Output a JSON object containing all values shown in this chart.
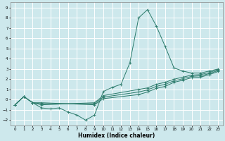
{
  "xlabel": "Humidex (Indice chaleur)",
  "xlim": [
    -0.5,
    23.5
  ],
  "ylim": [
    -2.5,
    9.5
  ],
  "xticks": [
    0,
    1,
    2,
    3,
    4,
    5,
    6,
    7,
    8,
    9,
    10,
    11,
    12,
    13,
    14,
    15,
    16,
    17,
    18,
    19,
    20,
    21,
    22,
    23
  ],
  "yticks": [
    -2,
    -1,
    0,
    1,
    2,
    3,
    4,
    5,
    6,
    7,
    8,
    9
  ],
  "background_color": "#cde8ec",
  "grid_color": "#ffffff",
  "line_color": "#2a7a6a",
  "lines": [
    {
      "x": [
        0,
        1,
        2,
        3,
        4,
        5,
        6,
        7,
        8,
        9,
        10,
        11,
        12,
        13,
        14,
        15,
        16,
        17,
        18,
        19,
        20,
        21,
        22,
        23
      ],
      "y": [
        -0.5,
        0.3,
        -0.3,
        -0.8,
        -0.9,
        -0.8,
        -1.2,
        -1.5,
        -2.0,
        -1.5,
        0.8,
        1.2,
        1.5,
        3.6,
        8.0,
        8.8,
        7.2,
        5.2,
        3.1,
        2.8,
        2.6,
        2.6,
        2.8,
        3.0
      ]
    },
    {
      "x": [
        0,
        1,
        2,
        3,
        9,
        10,
        14,
        15,
        16,
        17,
        18,
        19,
        20,
        21,
        22,
        23
      ],
      "y": [
        -0.5,
        0.3,
        -0.3,
        -0.5,
        -0.3,
        0.4,
        1.0,
        1.15,
        1.5,
        1.7,
        2.0,
        2.2,
        2.4,
        2.45,
        2.65,
        2.95
      ]
    },
    {
      "x": [
        0,
        1,
        2,
        3,
        9,
        10,
        14,
        15,
        16,
        17,
        18,
        19,
        20,
        21,
        22,
        23
      ],
      "y": [
        -0.5,
        0.3,
        -0.3,
        -0.4,
        -0.4,
        0.25,
        0.75,
        0.95,
        1.3,
        1.5,
        1.85,
        2.05,
        2.28,
        2.33,
        2.55,
        2.85
      ]
    },
    {
      "x": [
        0,
        1,
        2,
        3,
        9,
        10,
        14,
        15,
        16,
        17,
        18,
        19,
        20,
        21,
        22,
        23
      ],
      "y": [
        -0.5,
        0.3,
        -0.3,
        -0.3,
        -0.5,
        0.1,
        0.5,
        0.75,
        1.1,
        1.3,
        1.7,
        1.9,
        2.15,
        2.2,
        2.45,
        2.75
      ]
    }
  ]
}
